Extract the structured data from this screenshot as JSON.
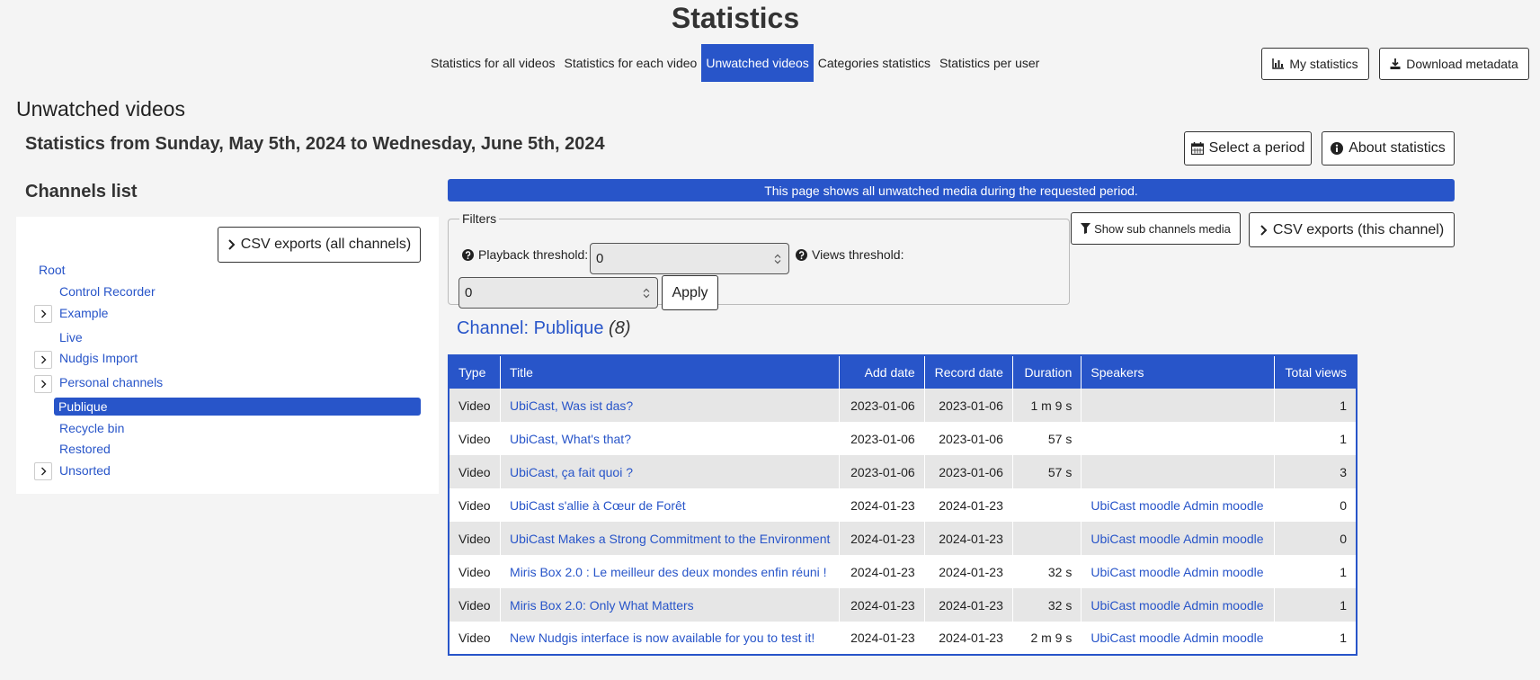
{
  "header": {
    "title": "Statistics",
    "tabs": [
      {
        "label": "Statistics for all videos",
        "active": false
      },
      {
        "label": "Statistics for each video",
        "active": false
      },
      {
        "label": "Unwatched videos",
        "active": true
      },
      {
        "label": "Categories statistics",
        "active": false
      },
      {
        "label": "Statistics per user",
        "active": false
      }
    ],
    "my_statistics_label": "My statistics",
    "download_metadata_label": "Download metadata"
  },
  "section": {
    "heading": "Unwatched videos",
    "period_text": "Statistics from Sunday, May 5th, 2024 to Wednesday, June 5th, 2024",
    "select_period_label": "Select a period",
    "about_statistics_label": "About statistics"
  },
  "sidebar": {
    "title": "Channels list",
    "csv_all_label": "CSV exports (all channels)",
    "tree": [
      {
        "label": "Root",
        "expandable": false,
        "selected": false
      },
      {
        "label": "Control Recorder",
        "expandable": false,
        "selected": false
      },
      {
        "label": "Example",
        "expandable": true,
        "selected": false
      },
      {
        "label": "Live",
        "expandable": false,
        "selected": false
      },
      {
        "label": "Nudgis Import",
        "expandable": true,
        "selected": false
      },
      {
        "label": "Personal channels",
        "expandable": true,
        "selected": false
      },
      {
        "label": "Publique",
        "expandable": false,
        "selected": true
      },
      {
        "label": "Recycle bin",
        "expandable": false,
        "selected": false
      },
      {
        "label": "Restored",
        "expandable": false,
        "selected": false
      },
      {
        "label": "Unsorted",
        "expandable": true,
        "selected": false
      }
    ]
  },
  "main": {
    "info_banner": "This page shows all unwatched media during the requested period.",
    "filters": {
      "legend": "Filters",
      "playback_label": "Playback threshold:",
      "playback_value": "0",
      "views_label": "Views threshold:",
      "views_value": "0",
      "apply_label": "Apply"
    },
    "show_sub_label": "Show sub channels media",
    "csv_channel_label": "CSV exports (this channel)",
    "channel": {
      "prefix": "Channel:",
      "name": "Publique",
      "count": "(8)"
    },
    "table": {
      "columns": [
        "Type",
        "Title",
        "Add date",
        "Record date",
        "Duration",
        "Speakers",
        "Total views"
      ],
      "rows": [
        {
          "type": "Video",
          "title": "UbiCast, Was ist das?",
          "add_date": "2023-01-06",
          "record_date": "2023-01-06",
          "duration": "1 m 9 s",
          "speakers": "",
          "views": "1"
        },
        {
          "type": "Video",
          "title": "UbiCast, What's that?",
          "add_date": "2023-01-06",
          "record_date": "2023-01-06",
          "duration": "57 s",
          "speakers": "",
          "views": "1"
        },
        {
          "type": "Video",
          "title": "UbiCast, ça fait quoi ?",
          "add_date": "2023-01-06",
          "record_date": "2023-01-06",
          "duration": "57 s",
          "speakers": "",
          "views": "3"
        },
        {
          "type": "Video",
          "title": "UbiCast s'allie à Cœur de Forêt",
          "add_date": "2024-01-23",
          "record_date": "2024-01-23",
          "duration": "",
          "speakers": "UbiCast moodle Admin moodle",
          "views": "0"
        },
        {
          "type": "Video",
          "title": "UbiCast Makes a Strong Commitment to the Environment",
          "add_date": "2024-01-23",
          "record_date": "2024-01-23",
          "duration": "",
          "speakers": "UbiCast moodle Admin moodle",
          "views": "0"
        },
        {
          "type": "Video",
          "title": "Miris Box 2.0 : Le meilleur des deux mondes enfin réuni !",
          "add_date": "2024-01-23",
          "record_date": "2024-01-23",
          "duration": "32 s",
          "speakers": "UbiCast moodle Admin moodle",
          "views": "1"
        },
        {
          "type": "Video",
          "title": "Miris Box 2.0: Only What Matters",
          "add_date": "2024-01-23",
          "record_date": "2024-01-23",
          "duration": "32 s",
          "speakers": "UbiCast moodle Admin moodle",
          "views": "1"
        },
        {
          "type": "Video",
          "title": "New Nudgis interface is now available for you to test it!",
          "add_date": "2024-01-23",
          "record_date": "2024-01-23",
          "duration": "2 m 9 s",
          "speakers": "UbiCast moodle Admin moodle",
          "views": "1"
        }
      ]
    }
  },
  "icons": {
    "chart": "bar-chart-icon",
    "download": "download-icon",
    "calendar": "calendar-icon",
    "info": "info-circle-icon",
    "chevron": "chevron-right-icon",
    "filter": "filter-icon",
    "question": "question-circle-icon"
  },
  "colors": {
    "accent": "#2855c9",
    "background": "#f4f4f4"
  }
}
